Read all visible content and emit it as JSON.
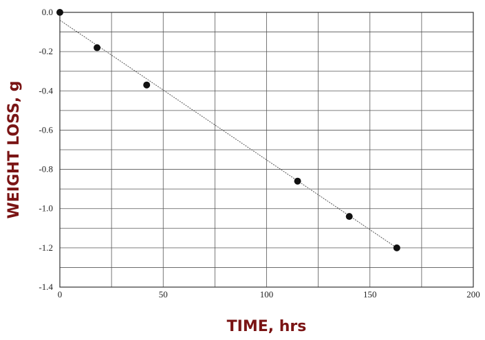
{
  "chart_data": {
    "type": "scatter",
    "xlabel": "TIME, hrs",
    "ylabel": "WEIGHT LOSS, g",
    "xlim": [
      0,
      200
    ],
    "ylim": [
      -1.4,
      0.0
    ],
    "xticks": [
      0,
      50,
      100,
      150,
      200
    ],
    "xtick_labels": [
      "0",
      "50",
      "100",
      "150",
      "200"
    ],
    "yticks": [
      0.0,
      -0.2,
      -0.4,
      -0.6,
      -0.8,
      -1.0,
      -1.2,
      -1.4
    ],
    "ytick_labels": [
      "0.0",
      "-0.2",
      "-0.4",
      "-0.6",
      "-0.8",
      "-1.0",
      "-1.2",
      "-1.4"
    ],
    "grid": true,
    "series": [
      {
        "points": [
          {
            "x": 0,
            "y": 0.0
          },
          {
            "x": 18,
            "y": -0.18
          },
          {
            "x": 42,
            "y": -0.37
          },
          {
            "x": 115,
            "y": -0.86
          },
          {
            "x": 140,
            "y": -1.04
          },
          {
            "x": 163,
            "y": -1.2
          }
        ]
      }
    ],
    "fit_line": {
      "x": [
        0,
        163
      ],
      "y": [
        -0.04,
        -1.2
      ]
    },
    "colors": {
      "axis_title": "#7a1414",
      "points": "#111111",
      "grid": "#555555"
    }
  }
}
